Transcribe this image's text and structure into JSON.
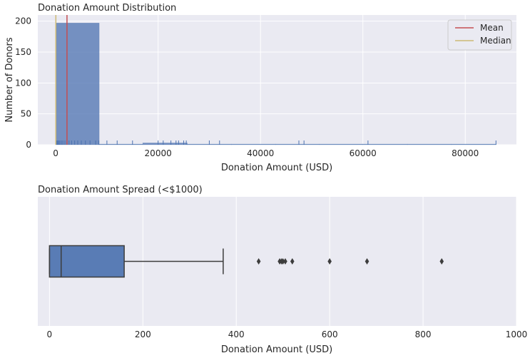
{
  "chart_data": [
    {
      "type": "bar",
      "subtype": "histogram",
      "title": "Donation Amount Distribution",
      "xlabel": "Donation Amount (USD)",
      "ylabel": "Number of Donors",
      "xlim": [
        -3500,
        90000
      ],
      "ylim": [
        0,
        210
      ],
      "xticks": [
        0,
        20000,
        40000,
        60000,
        80000
      ],
      "xtick_labels": [
        "0",
        "20000",
        "40000",
        "60000",
        "80000"
      ],
      "yticks": [
        0,
        50,
        100,
        150,
        200
      ],
      "ytick_labels": [
        "0",
        "50",
        "100",
        "150",
        "200"
      ],
      "bins": [
        {
          "x0": 0,
          "x1": 8500,
          "count": 197
        },
        {
          "x0": 8500,
          "x1": 17000,
          "count": 0
        },
        {
          "x0": 17000,
          "x1": 25700,
          "count": 3
        },
        {
          "x0": 25700,
          "x1": 34300,
          "count": 0
        },
        {
          "x0": 34300,
          "x1": 43000,
          "count": 0
        },
        {
          "x0": 43000,
          "x1": 51500,
          "count": 0
        },
        {
          "x0": 51500,
          "x1": 60000,
          "count": 0
        },
        {
          "x0": 60000,
          "x1": 68700,
          "count": 0
        },
        {
          "x0": 68700,
          "x1": 77300,
          "count": 0
        },
        {
          "x0": 77300,
          "x1": 86000,
          "count": 0
        }
      ],
      "rug": [
        0,
        120,
        250,
        400,
        600,
        800,
        1100,
        1400,
        1800,
        2200,
        2600,
        3100,
        3700,
        4300,
        5000,
        5800,
        6700,
        7800,
        8400,
        10000,
        12000,
        15000,
        20000,
        21000,
        22500,
        23500,
        24000,
        25000,
        25500,
        30000,
        32000,
        47500,
        48500,
        61000,
        86000
      ],
      "reference_lines": [
        {
          "name": "Mean",
          "value": 2200,
          "color": "#c44e52"
        },
        {
          "name": "Median",
          "value": 25,
          "color": "#ccb974"
        }
      ],
      "legend": {
        "position": "top-right",
        "entries": [
          "Mean",
          "Median"
        ]
      },
      "grid": true
    },
    {
      "type": "box",
      "title": "Donation Amount Spread (<$1000)",
      "xlabel": "Donation Amount (USD)",
      "xlim": [
        -25,
        1000
      ],
      "xticks": [
        0,
        200,
        400,
        600,
        800,
        1000
      ],
      "xtick_labels": [
        "0",
        "200",
        "400",
        "600",
        "800",
        "1000"
      ],
      "box": {
        "whisker_low": 0,
        "q1": 0,
        "median": 25,
        "q3": 160,
        "whisker_high": 372
      },
      "outliers": [
        448,
        493,
        497,
        500,
        505,
        520,
        600,
        680,
        840
      ],
      "color": "#4c72b0",
      "grid": true
    }
  ]
}
